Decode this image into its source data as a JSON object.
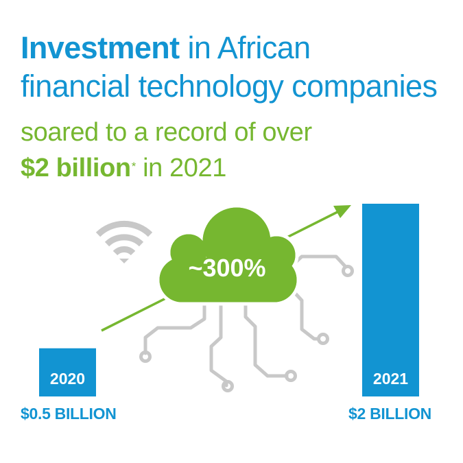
{
  "headline": {
    "strong": "Investment",
    "rest_line1": " in African",
    "line2": "financial technology companies"
  },
  "subhead": {
    "line1": "soared to a record of over",
    "strong": "$2 billion",
    "footnote_mark": "*",
    "rest": " in 2021"
  },
  "growth_label": "~300%",
  "colors": {
    "blue": "#1294d2",
    "green": "#76b730",
    "gray": "#c8c8c8",
    "white": "#ffffff"
  },
  "icons": [
    "wifi-icon",
    "cloud-icon",
    "circuit-icon",
    "trend-arrow-icon"
  ],
  "chart_data": {
    "type": "bar",
    "categories": [
      "2020",
      "2021"
    ],
    "values": [
      0.5,
      2
    ],
    "value_labels": [
      "$0.5 BILLION",
      "$2 BILLION"
    ],
    "ylim": [
      0,
      2
    ],
    "grid": false
  }
}
